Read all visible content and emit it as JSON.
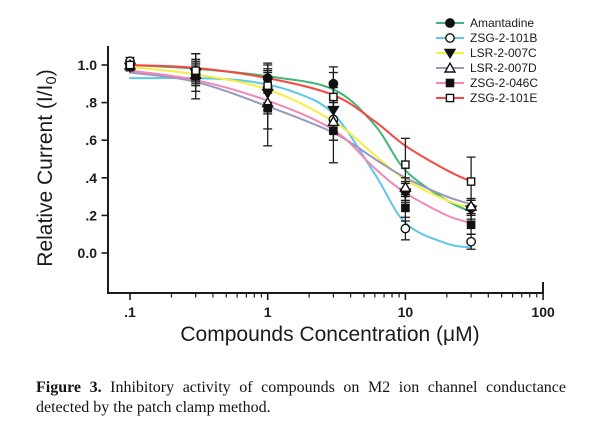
{
  "figure": {
    "caption_label": "Figure 3.",
    "caption_text": " Inhibitory activity of compounds on M2 ion channel conductance detected by the patch clamp method."
  },
  "chart_data": {
    "type": "line",
    "title": "",
    "xlabel": "Compounds Concentration (μM)",
    "ylabel_main": "Relative Current (I/I",
    "ylabel_sub": "0",
    "ylabel_tail": ")",
    "xscale": "log",
    "xlim": [
      0.1,
      100
    ],
    "ylim": [
      0.0,
      1.0
    ],
    "grid": false,
    "legend_position": "top-right",
    "axis_color": "#1c1c1c",
    "xticks": [
      {
        "v": 0.1,
        "label": ".1"
      },
      {
        "v": 1,
        "label": "1"
      },
      {
        "v": 10,
        "label": "10"
      },
      {
        "v": 100,
        "label": "100"
      }
    ],
    "yticks": [
      {
        "v": 0.0,
        "label": "0.0"
      },
      {
        "v": 0.2,
        "label": ".2"
      },
      {
        "v": 0.4,
        "label": ".4"
      },
      {
        "v": 0.6,
        "label": ".6"
      },
      {
        "v": 0.8,
        "label": ".8"
      },
      {
        "v": 1.0,
        "label": "1.0"
      }
    ],
    "x": [
      0.1,
      0.3,
      1,
      3,
      10,
      30
    ],
    "series": [
      {
        "name": "Amantadine",
        "color": "#3cb878",
        "marker": "circle-filled",
        "values": [
          1.0,
          0.97,
          0.93,
          0.9,
          0.33,
          0.24
        ],
        "errors": [
          0.02,
          0.05,
          0.08,
          0.09,
          0.05,
          0.04
        ],
        "curve": [
          [
            0.1,
            1.0
          ],
          [
            0.3,
            0.98
          ],
          [
            1,
            0.94
          ],
          [
            3,
            0.87
          ],
          [
            6,
            0.68
          ],
          [
            10,
            0.44
          ],
          [
            20,
            0.28
          ],
          [
            30,
            0.22
          ]
        ]
      },
      {
        "name": "ZSG-2-101B",
        "color": "#5ec8e9",
        "marker": "circle-open",
        "values": [
          1.02,
          0.95,
          0.88,
          0.71,
          0.13,
          0.06
        ],
        "errors": [
          0.02,
          0.05,
          0.12,
          0.11,
          0.06,
          0.04
        ],
        "curve": [
          [
            0.1,
            0.93
          ],
          [
            0.3,
            0.93
          ],
          [
            0.7,
            0.915
          ],
          [
            1.5,
            0.86
          ],
          [
            3,
            0.74
          ],
          [
            6,
            0.42
          ],
          [
            10,
            0.16
          ],
          [
            20,
            0.05
          ],
          [
            30,
            0.03
          ]
        ]
      },
      {
        "name": "LSR-2-007C",
        "color": "#f6ee41",
        "marker": "triangle-down-filled",
        "values": [
          0.99,
          0.96,
          0.85,
          0.76,
          0.32,
          0.23
        ],
        "errors": [
          0.02,
          0.1,
          0.11,
          0.12,
          0.05,
          0.05
        ],
        "curve": [
          [
            0.1,
            0.99
          ],
          [
            0.3,
            0.95
          ],
          [
            1,
            0.87
          ],
          [
            3,
            0.7
          ],
          [
            6,
            0.52
          ],
          [
            10,
            0.39
          ],
          [
            20,
            0.28
          ],
          [
            30,
            0.24
          ]
        ]
      },
      {
        "name": "LSR-2-007D",
        "color": "#9898bd",
        "marker": "triangle-up-open",
        "values": [
          1.0,
          0.95,
          0.8,
          0.7,
          0.35,
          0.25
        ],
        "errors": [
          0.02,
          0.06,
          0.14,
          0.1,
          0.05,
          0.04
        ],
        "curve": [
          [
            0.1,
            0.96
          ],
          [
            0.3,
            0.91
          ],
          [
            1,
            0.78
          ],
          [
            3,
            0.64
          ],
          [
            6,
            0.5
          ],
          [
            10,
            0.4
          ],
          [
            20,
            0.3
          ],
          [
            30,
            0.26
          ]
        ]
      },
      {
        "name": "ZSG-2-046C",
        "color": "#f386b9",
        "marker": "square-filled",
        "values": [
          0.99,
          0.94,
          0.77,
          0.65,
          0.24,
          0.15
        ],
        "errors": [
          0.02,
          0.12,
          0.2,
          0.17,
          0.07,
          0.05
        ],
        "curve": [
          [
            0.1,
            0.97
          ],
          [
            0.3,
            0.92
          ],
          [
            1,
            0.81
          ],
          [
            3,
            0.655
          ],
          [
            6,
            0.45
          ],
          [
            10,
            0.32
          ],
          [
            20,
            0.2
          ],
          [
            30,
            0.16
          ]
        ]
      },
      {
        "name": "ZSG-2-101E",
        "color": "#f9463f",
        "marker": "square-open",
        "values": [
          1.0,
          0.97,
          0.89,
          0.83,
          0.47,
          0.38
        ],
        "errors": [
          0.02,
          0.06,
          0.09,
          0.13,
          0.14,
          0.13
        ],
        "curve": [
          [
            0.1,
            1.0
          ],
          [
            0.3,
            0.985
          ],
          [
            1,
            0.93
          ],
          [
            3,
            0.84
          ],
          [
            6,
            0.7
          ],
          [
            10,
            0.57
          ],
          [
            20,
            0.44
          ],
          [
            30,
            0.38
          ]
        ]
      }
    ]
  }
}
